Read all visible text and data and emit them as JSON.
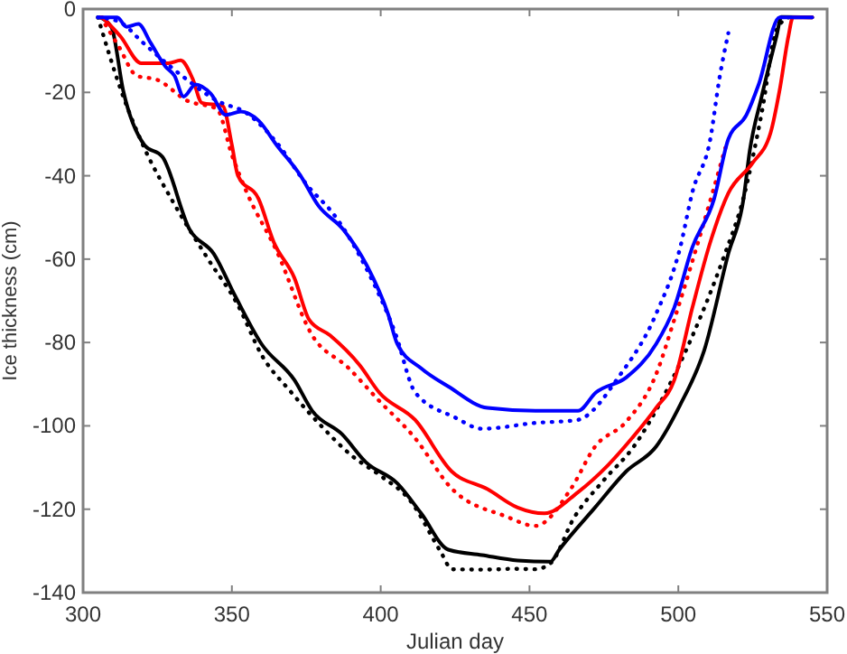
{
  "chart_data": {
    "type": "line",
    "xlabel": "Julian day",
    "ylabel": "Ice thickness (cm)",
    "xlim": [
      300,
      550
    ],
    "ylim": [
      -140,
      0
    ],
    "xticks": [
      300,
      350,
      400,
      450,
      500,
      550
    ],
    "yticks": [
      -140,
      -120,
      -100,
      -80,
      -60,
      -40,
      -20,
      0
    ],
    "grid": false,
    "series": [
      {
        "color": "#000000",
        "line_style": "solid",
        "x": [
          305.5,
          309.5,
          313.5,
          320.6,
          326.7,
          335.8,
          343.9,
          351,
          360,
          371,
          377,
          387,
          395,
          405.6,
          413.6,
          422.7,
          434,
          446,
          457,
          460,
          472,
          482.5,
          492.5,
          500.6,
          508.7,
          516.8,
          521.9,
          524,
          528,
          533,
          534.6,
          545
        ],
        "values": [
          -2,
          -4.3,
          -19.6,
          -32.6,
          -35.5,
          -52.9,
          -58.7,
          -68.7,
          -80.4,
          -89,
          -96.4,
          -102,
          -108.7,
          -113.8,
          -121,
          -129.7,
          -131,
          -132.3,
          -132.6,
          -129.7,
          -119.6,
          -110.9,
          -105,
          -95,
          -81.9,
          -58.7,
          -45.6,
          -34,
          -21,
          -6.5,
          -1.9,
          -2
        ]
      },
      {
        "color": "#000000",
        "line_style": "dotted",
        "x": [
          305,
          313,
          321,
          330,
          342,
          352,
          360,
          370,
          380,
          390,
          400,
          410,
          420,
          424,
          435,
          445,
          452,
          457,
          465,
          475,
          485,
          495,
          505,
          515,
          522,
          528,
          533,
          537
        ],
        "values": [
          -2,
          -20,
          -34,
          -46,
          -60,
          -71,
          -83,
          -92,
          -100,
          -107,
          -112,
          -118,
          -130,
          -134.4,
          -134.5,
          -134.3,
          -134.4,
          -133,
          -122,
          -113,
          -105,
          -93,
          -78,
          -60,
          -45,
          -25,
          -5,
          -2
        ]
      },
      {
        "color": "#ff0000",
        "line_style": "solid",
        "x": [
          306.5,
          312.5,
          319.6,
          328.7,
          332.8,
          336.8,
          339.9,
          346.9,
          350,
          352,
          359,
          364,
          371,
          376,
          383,
          393,
          399.5,
          411.6,
          423.8,
          435.9,
          446,
          455,
          466.3,
          476.4,
          484.5,
          492.5,
          498.6,
          504.7,
          510.8,
          516.8,
          524.9,
          531,
          534,
          537,
          538.5,
          545
        ],
        "values": [
          -2,
          -6.5,
          -13,
          -13,
          -12.3,
          -16.7,
          -22.5,
          -23.2,
          -32.6,
          -39.9,
          -45.6,
          -55.8,
          -64.5,
          -74.6,
          -78.3,
          -85.5,
          -92,
          -98.6,
          -110.9,
          -115.2,
          -119.6,
          -121,
          -115.9,
          -109.4,
          -102.9,
          -95.7,
          -89.1,
          -71.7,
          -55.8,
          -44.2,
          -37,
          -29.7,
          -19.6,
          -6.5,
          -2,
          -2
        ]
      },
      {
        "color": "#ff0000",
        "line_style": "dotted",
        "x": [
          306,
          312,
          318,
          325,
          335,
          345,
          350,
          355,
          365,
          377,
          389,
          399.5,
          411.6,
          423.8,
          442,
          452,
          464,
          472,
          482.5,
          492.5,
          498.6,
          506.7,
          515.8
        ],
        "values": [
          -2,
          -9,
          -16,
          -17,
          -22,
          -24,
          -35,
          -44,
          -58,
          -78.3,
          -86,
          -94,
          -103,
          -115,
          -121.7,
          -124,
          -115,
          -105,
          -99,
          -87.7,
          -74.6,
          -55.8,
          -33.3
        ]
      },
      {
        "color": "#0000ff",
        "line_style": "solid",
        "x": [
          305.5,
          311.5,
          314.6,
          318.6,
          322.6,
          327.7,
          330.7,
          333.8,
          337.8,
          342.9,
          348,
          353,
          359,
          365,
          373,
          379,
          387.4,
          395.4,
          402.5,
          405.6,
          413.6,
          422.8,
          435.9,
          452,
          466.3,
          472.3,
          482.5,
          492.5,
          498.6,
          504.7,
          512,
          516.8,
          522.9,
          527,
          534,
          545
        ],
        "values": [
          -2,
          -2,
          -4.3,
          -3.6,
          -8,
          -13.8,
          -16,
          -21,
          -18.1,
          -20.3,
          -25.4,
          -24.6,
          -26.8,
          -32.6,
          -39.9,
          -47.1,
          -52.9,
          -61.6,
          -73.2,
          -80.4,
          -86.2,
          -90.6,
          -95.7,
          -96.4,
          -96.4,
          -92,
          -88.4,
          -80.4,
          -71.7,
          -57.2,
          -45.6,
          -31.2,
          -25.4,
          -18.1,
          -2,
          -2
        ]
      },
      {
        "color": "#0000ff",
        "line_style": "dotted",
        "x": [
          305,
          312,
          320,
          328,
          335,
          345,
          355,
          365,
          375,
          385,
          395,
          405,
          411.6,
          425,
          434,
          452,
          466,
          480.5,
          492.5,
          500.7,
          504.7,
          510.8,
          513.8,
          516.8
        ],
        "values": [
          -2,
          -3,
          -8,
          -13,
          -17,
          -22,
          -25,
          -32,
          -42,
          -50,
          -62,
          -78,
          -92,
          -98,
          -100.7,
          -99.3,
          -98.6,
          -87.7,
          -73.2,
          -57,
          -44,
          -31,
          -16.7,
          -5.8
        ]
      }
    ]
  }
}
